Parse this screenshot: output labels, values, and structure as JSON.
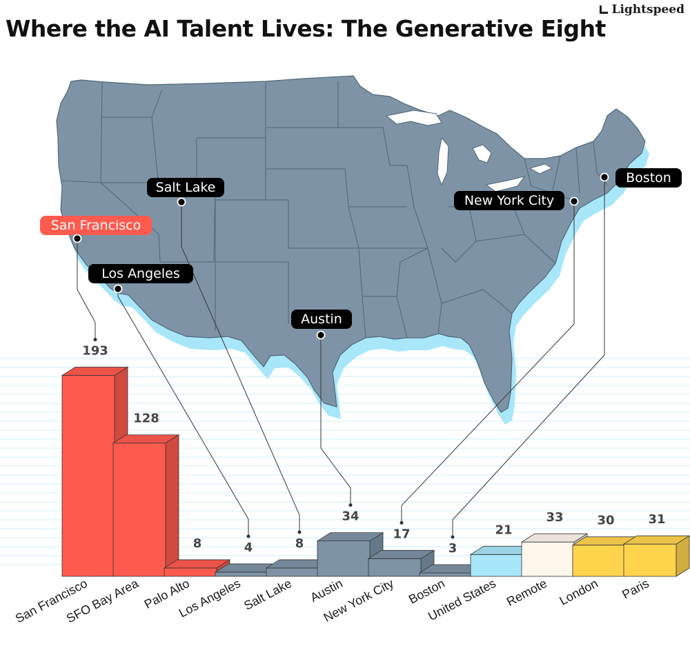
{
  "header": {
    "title": "Where the AI Talent Lives: The Generative Eight",
    "brand": "Lightspeed"
  },
  "colors": {
    "red": "#FF5A4E",
    "slate": "#7E94A6",
    "light_blue": "#A8E6FA",
    "cream": "#FFF7EC",
    "yellow": "#FFD44D",
    "map_fill": "#7E94A6",
    "map_shadow": "#A8E6FA",
    "grid": "#CDEFF8",
    "pill_dark": "#000000",
    "pill_red": "#FF5A4E"
  },
  "map_cities": [
    {
      "name": "Salt Lake",
      "highlight": false
    },
    {
      "name": "San Francisco",
      "highlight": true
    },
    {
      "name": "Los Angeles",
      "highlight": false
    },
    {
      "name": "Austin",
      "highlight": false
    },
    {
      "name": "New York City",
      "highlight": false
    },
    {
      "name": "Boston",
      "highlight": false
    }
  ],
  "chart_data": {
    "type": "bar",
    "title": "Where the AI Talent Lives: The Generative Eight",
    "xlabel": "",
    "ylabel": "",
    "ylim": [
      0,
      200
    ],
    "grid": true,
    "categories": [
      "San Francisco",
      "SFO Bay Area",
      "Palo Alto",
      "Los Angeles",
      "Salt Lake",
      "Austin",
      "New York City",
      "Boston",
      "United States",
      "Remote",
      "London",
      "Paris"
    ],
    "values": [
      193,
      128,
      8,
      4,
      8,
      34,
      17,
      3,
      21,
      33,
      30,
      31
    ],
    "bar_colors": [
      "red",
      "red",
      "red",
      "slate",
      "slate",
      "slate",
      "slate",
      "slate",
      "light_blue",
      "cream",
      "yellow",
      "yellow"
    ]
  }
}
